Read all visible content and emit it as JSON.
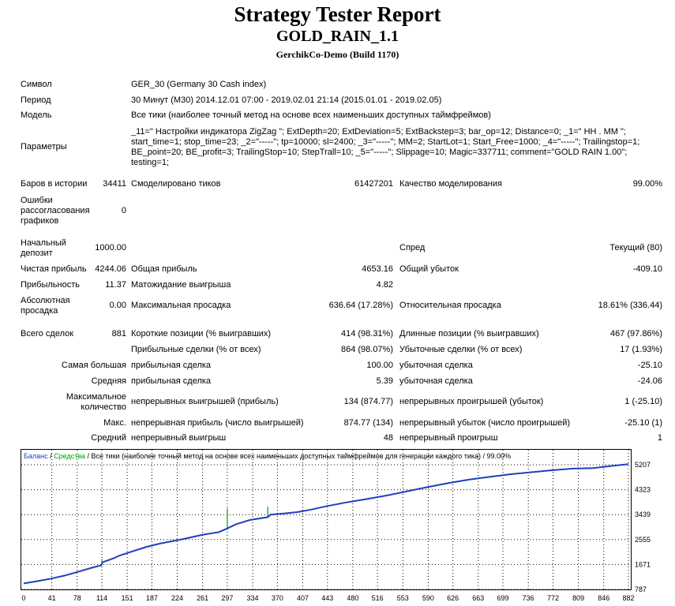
{
  "header": {
    "title": "Strategy Tester Report",
    "expert": "GOLD_RAIN_1.1",
    "server": "GerchikCo-Demo (Build 1170)"
  },
  "info": {
    "symbol_label": "Символ",
    "symbol_value": "GER_30 (Germany 30 Cash index)",
    "period_label": "Период",
    "period_value": "30 Минут (M30) 2014.12.01 07:00 - 2019.02.01 21:14 (2015.01.01 - 2019.02.05)",
    "model_label": "Модель",
    "model_value": "Все тики (наиболее точный метод на основе всех наименьших доступных таймфреймов)",
    "params_label": "Параметры",
    "params_value": "_11=\" Настройки индикатора ZigZag \"; ExtDepth=20; ExtDeviation=5; ExtBackstep=3; bar_op=12; Distance=0; _1=\" HH . MM \"; start_time=1; stop_time=23; _2=\"-----\"; tp=10000; sl=2400; _3=\"-----\"; MM=2; StartLot=1; Start_Free=1000; _4=\"-----\"; Trailingstop=1; BE_point=20; BE_profit=3; TrailingStop=10; StepTrall=10; _5=\"-----\"; Slippage=10; Magic=337711; comment=\"GOLD RAIN 1.00\"; testing=1;"
  },
  "stats": {
    "bars_label": "Баров в истории",
    "bars_value": "34411",
    "ticks_label": "Смоделировано тиков",
    "ticks_value": "61427201",
    "quality_label": "Качество моделирования",
    "quality_value": "99.00%",
    "errors_label": "Ошибки рассогласования графиков",
    "errors_value": "0",
    "deposit_label": "Начальный депозит",
    "deposit_value": "1000.00",
    "spread_label": "Спред",
    "spread_value": "Текущий (80)",
    "net_label": "Чистая прибыль",
    "net_value": "4244.06",
    "gross_profit_label": "Общая прибыль",
    "gross_profit_value": "4653.16",
    "gross_loss_label": "Общий убыток",
    "gross_loss_value": "-409.10",
    "pf_label": "Прибыльность",
    "pf_value": "11.37",
    "expected_label": "Матожидание выигрыша",
    "expected_value": "4.82",
    "abs_dd_label": "Абсолютная просадка",
    "abs_dd_value": "0.00",
    "max_dd_label": "Максимальная просадка",
    "max_dd_value": "636.64 (17.28%)",
    "rel_dd_label": "Относительная просадка",
    "rel_dd_value": "18.61% (336.44)",
    "trades_label": "Всего сделок",
    "trades_value": "881",
    "short_label": "Короткие позиции (% выигравших)",
    "short_value": "414 (98.31%)",
    "long_label": "Длинные позиции (% выигравших)",
    "long_value": "467 (97.86%)",
    "profit_trades_label": "Прибыльные сделки (% от всех)",
    "profit_trades_value": "864 (98.07%)",
    "loss_trades_label": "Убыточные сделки (% от всех)",
    "loss_trades_value": "17 (1.93%)",
    "largest_label": "Самая большая",
    "largest_profit_label": "прибыльная сделка",
    "largest_profit_value": "100.00",
    "largest_loss_label": "убыточная сделка",
    "largest_loss_value": "-25.10",
    "average_label": "Средняя",
    "average_profit_label": "прибыльная сделка",
    "average_profit_value": "5.39",
    "average_loss_label": "убыточная сделка",
    "average_loss_value": "-24.06",
    "max_count_label": "Максимальное количество",
    "max_consec_wins_label": "непрерывных выигрышей (прибыль)",
    "max_consec_wins_value": "134 (874.77)",
    "max_consec_losses_label": "непрерывных проигрышей (убыток)",
    "max_consec_losses_value": "1 (-25.10)",
    "max_label": "Макс.",
    "max_consec_profit_label": "непрерывная прибыль (число выигрышей)",
    "max_consec_profit_value": "874.77 (134)",
    "max_consec_loss_label": "непрерывный убыток (число проигрышей)",
    "max_consec_loss_value": "-25.10 (1)",
    "avg_label": "Средний",
    "avg_consec_wins_label": "непрерывный выигрыш",
    "avg_consec_wins_value": "48",
    "avg_consec_losses_label": "непрерывный проигрыш",
    "avg_consec_losses_value": "1"
  },
  "chart_data": {
    "type": "line",
    "legend_balance": "Баланс",
    "legend_sep1": " / ",
    "legend_equity": "Средства",
    "legend_rest": " / Все тики (наиболее точный метод на основе всех наименьших доступных таймфреймов для генерации каждого тика) / 99.00%",
    "balance_color": "#1f3fbf",
    "equity_color": "#00a000",
    "x_ticks": [
      0,
      41,
      78,
      114,
      151,
      187,
      224,
      261,
      297,
      334,
      370,
      407,
      443,
      480,
      516,
      553,
      590,
      626,
      663,
      699,
      736,
      772,
      809,
      846,
      882
    ],
    "y_ticks": [
      787,
      1671,
      2555,
      3439,
      4323,
      5207
    ],
    "xlim": [
      0,
      882
    ],
    "ylim": [
      787,
      5207
    ],
    "balance": [
      [
        0,
        1000
      ],
      [
        20,
        1080
      ],
      [
        40,
        1170
      ],
      [
        60,
        1280
      ],
      [
        80,
        1420
      ],
      [
        100,
        1560
      ],
      [
        113,
        1640
      ],
      [
        115,
        1750
      ],
      [
        130,
        1880
      ],
      [
        140,
        1990
      ],
      [
        160,
        2150
      ],
      [
        180,
        2300
      ],
      [
        200,
        2420
      ],
      [
        230,
        2560
      ],
      [
        260,
        2720
      ],
      [
        285,
        2820
      ],
      [
        297,
        2950
      ],
      [
        310,
        3100
      ],
      [
        330,
        3250
      ],
      [
        356,
        3350
      ],
      [
        360,
        3440
      ],
      [
        380,
        3480
      ],
      [
        400,
        3530
      ],
      [
        420,
        3620
      ],
      [
        440,
        3730
      ],
      [
        470,
        3870
      ],
      [
        500,
        3990
      ],
      [
        530,
        4120
      ],
      [
        560,
        4270
      ],
      [
        590,
        4420
      ],
      [
        620,
        4560
      ],
      [
        650,
        4680
      ],
      [
        680,
        4780
      ],
      [
        710,
        4870
      ],
      [
        740,
        4940
      ],
      [
        770,
        5010
      ],
      [
        800,
        5070
      ],
      [
        830,
        5090
      ],
      [
        860,
        5170
      ],
      [
        882,
        5230
      ]
    ],
    "equity_spikes": [
      [
        114,
        1640,
        1870
      ],
      [
        297,
        2900,
        3660
      ],
      [
        356,
        3330,
        3720
      ]
    ]
  }
}
